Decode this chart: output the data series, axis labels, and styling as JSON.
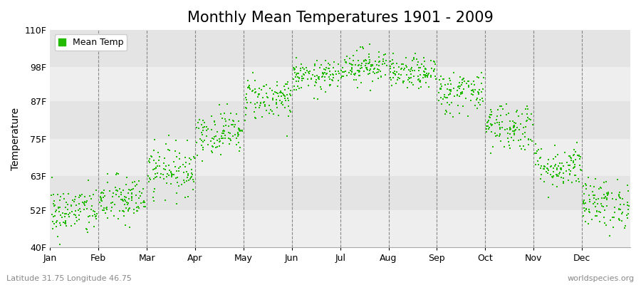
{
  "title": "Monthly Mean Temperatures 1901 - 2009",
  "ylabel": "Temperature",
  "ytick_labels": [
    "40F",
    "52F",
    "63F",
    "75F",
    "87F",
    "98F",
    "110F"
  ],
  "ytick_values": [
    40,
    52,
    63,
    75,
    87,
    98,
    110
  ],
  "ylim": [
    40,
    110
  ],
  "month_labels": [
    "Jan",
    "Feb",
    "Mar",
    "Apr",
    "May",
    "Jun",
    "Jul",
    "Aug",
    "Sep",
    "Oct",
    "Nov",
    "Dec"
  ],
  "dot_color": "#22bb00",
  "background_color": "#ffffff",
  "plot_bg_color": "#eeeeee",
  "band_colors": [
    "#eeeeee",
    "#e4e4e4"
  ],
  "legend_label": "Mean Temp",
  "footer_left": "Latitude 31.75 Longitude 46.75",
  "footer_right": "worldspecies.org",
  "title_fontsize": 15,
  "axis_fontsize": 9,
  "legend_fontsize": 9,
  "true_means": [
    51.5,
    55,
    65,
    77,
    88,
    95,
    98.5,
    96,
    90,
    79,
    66,
    54
  ],
  "true_stds": [
    4.0,
    4.0,
    4.0,
    3.5,
    3.5,
    2.5,
    2.8,
    2.5,
    3.5,
    4.0,
    3.5,
    4.0
  ],
  "n_years": 109,
  "seed": 42,
  "n_months": 12,
  "xlim_left": 0,
  "xlim_right": 12
}
